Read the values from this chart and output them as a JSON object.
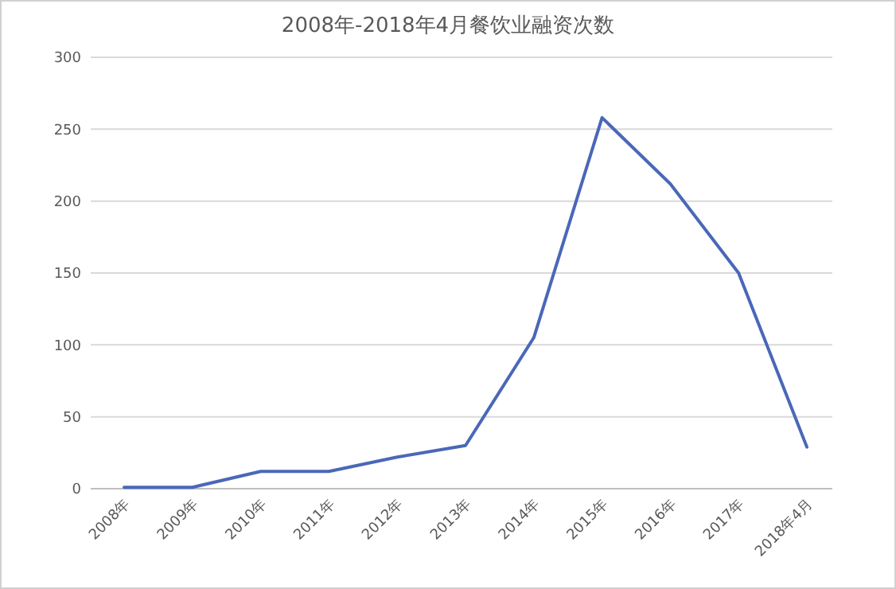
{
  "chart_data": {
    "type": "line",
    "title": "2008年-2018年4月餐饮业融资次数",
    "categories": [
      "2008年",
      "2009年",
      "2010年",
      "2011年",
      "2012年",
      "2013年",
      "2014年",
      "2015年",
      "2016年",
      "2017年",
      "2018年4月"
    ],
    "series": [
      {
        "color": "#4a68b8",
        "values": [
          1,
          1,
          12,
          12,
          22,
          30,
          105,
          258,
          212,
          150,
          29
        ]
      }
    ],
    "ylim": [
      0,
      300
    ],
    "yticks": [
      0,
      50,
      100,
      150,
      200,
      250,
      300
    ],
    "grid": "y",
    "marker": "none",
    "line_style": "solid"
  }
}
